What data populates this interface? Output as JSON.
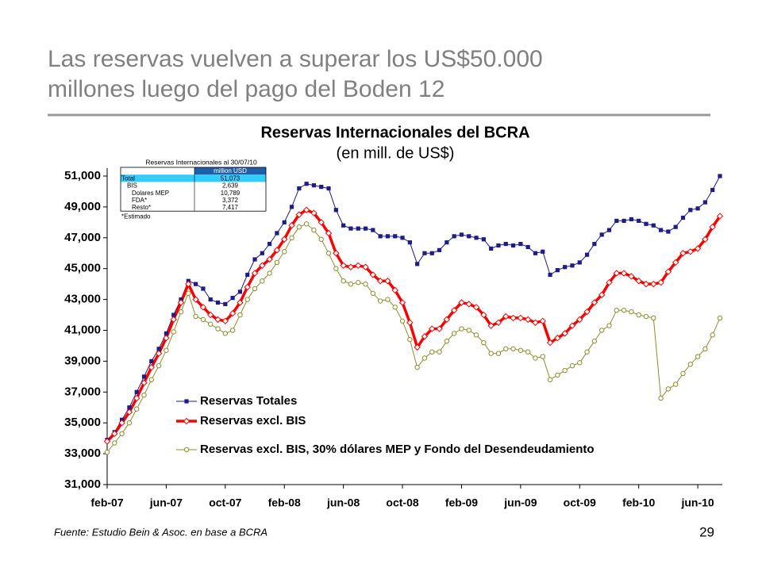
{
  "slide": {
    "title_lines": [
      "Las reservas vuelven a superar los US$50.000",
      "millones luego del pago del Boden 12"
    ],
    "source": "Fuente: Estudio Bein & Asoc. en base a BCRA",
    "page_number": "29"
  },
  "inset_table": {
    "title": "Reservas Internacionales al 30/07/10",
    "header": "million USD",
    "rows": [
      [
        "Total",
        "51,073"
      ],
      [
        "BIS",
        "2,639"
      ],
      [
        "Dolares MEP",
        "10,789"
      ],
      [
        "FDA*",
        "3,372"
      ],
      [
        "Resto*",
        "7,417"
      ]
    ],
    "note": "*Estimado"
  },
  "chart_data": {
    "type": "line",
    "title": "Reservas Internacionales del BCRA",
    "subtitle": "(en mill. de US$)",
    "categories": [
      "feb-07",
      null,
      null,
      null,
      null,
      null,
      null,
      null,
      "jun-07",
      null,
      null,
      null,
      null,
      null,
      null,
      null,
      "oct-07",
      null,
      null,
      null,
      null,
      null,
      null,
      null,
      "feb-08",
      null,
      null,
      null,
      null,
      null,
      null,
      null,
      "jun-08",
      null,
      null,
      null,
      null,
      null,
      null,
      null,
      "oct-08",
      null,
      null,
      null,
      null,
      null,
      null,
      null,
      "feb-09",
      null,
      null,
      null,
      null,
      null,
      null,
      null,
      "jun-09",
      null,
      null,
      null,
      null,
      null,
      null,
      null,
      "oct-09",
      null,
      null,
      null,
      null,
      null,
      null,
      null,
      "feb-10",
      null,
      null,
      null,
      null,
      null,
      null,
      null,
      "jun-10",
      null,
      null,
      null
    ],
    "ylim": [
      31000,
      51000
    ],
    "yticks": [
      {
        "value": 31000,
        "label": "31,000"
      },
      {
        "value": 33000,
        "label": "33,000"
      },
      {
        "value": 35000,
        "label": "35,000"
      },
      {
        "value": 37000,
        "label": "37,000"
      },
      {
        "value": 39000,
        "label": "39,000"
      },
      {
        "value": 41000,
        "label": "41,000"
      },
      {
        "value": 43000,
        "label": "43,000"
      },
      {
        "value": 45000,
        "label": "45,000"
      },
      {
        "value": 47000,
        "label": "47,000"
      },
      {
        "value": 49000,
        "label": "49,000"
      },
      {
        "value": 51000,
        "label": "51,000"
      }
    ],
    "grid": false,
    "series": [
      {
        "name": "Reservas Totales",
        "color": "#1c1c8a",
        "marker": "square",
        "values": [
          33900,
          34400,
          35200,
          36000,
          37000,
          38000,
          39000,
          39800,
          40800,
          42000,
          43000,
          44200,
          44000,
          43700,
          43000,
          42800,
          42700,
          43100,
          43500,
          44600,
          45600,
          46000,
          46600,
          47300,
          48000,
          49000,
          50200,
          50500,
          50400,
          50300,
          50200,
          48800,
          47800,
          47600,
          47600,
          47600,
          47500,
          47100,
          47100,
          47100,
          47000,
          46700,
          45300,
          46000,
          46000,
          46200,
          46700,
          47100,
          47200,
          47100,
          47000,
          46900,
          46300,
          46500,
          46600,
          46500,
          46600,
          46400,
          46000,
          46100,
          44600,
          44900,
          45100,
          45200,
          45400,
          45900,
          46600,
          47200,
          47500,
          48100,
          48100,
          48200,
          48100,
          47900,
          47800,
          47500,
          47400,
          47700,
          48300,
          48800,
          48900,
          49300,
          50100,
          51000
        ]
      },
      {
        "name": "Reservas excl. BIS",
        "color": "#ff0000",
        "marker": "diamond",
        "values": [
          33800,
          34300,
          35000,
          35700,
          36600,
          37600,
          38600,
          39500,
          40500,
          41700,
          42800,
          44000,
          43000,
          42500,
          42000,
          41700,
          41600,
          42100,
          42800,
          43800,
          44700,
          45200,
          45600,
          46200,
          46900,
          47800,
          48500,
          48800,
          48600,
          48000,
          47300,
          46000,
          45200,
          45100,
          45200,
          45100,
          44600,
          44200,
          44200,
          43600,
          42800,
          41500,
          39900,
          40600,
          41100,
          41100,
          41700,
          42300,
          42800,
          42700,
          42500,
          42000,
          41300,
          41500,
          41900,
          41800,
          41800,
          41700,
          41500,
          41600,
          40200,
          40500,
          40800,
          41300,
          41700,
          42200,
          42800,
          43300,
          44100,
          44700,
          44700,
          44500,
          44200,
          44000,
          44000,
          44100,
          44800,
          45400,
          46000,
          46100,
          46300,
          46900,
          47700,
          48400
        ]
      },
      {
        "name": "Reservas excl. BIS, 30% dólares MEP y Fondo del Desendeudamiento",
        "color": "#8f8f2a",
        "marker": "circle",
        "values": [
          33100,
          33700,
          34300,
          35000,
          35900,
          36800,
          37800,
          38700,
          39700,
          40900,
          42200,
          43400,
          41900,
          41700,
          41400,
          41100,
          40800,
          41000,
          42000,
          43000,
          43700,
          44200,
          44700,
          45400,
          46100,
          47000,
          47700,
          47900,
          47500,
          46900,
          46000,
          45000,
          44200,
          44000,
          44100,
          44000,
          43400,
          42900,
          43000,
          42500,
          41600,
          40400,
          38600,
          39200,
          39600,
          39600,
          40300,
          40800,
          41100,
          41000,
          40700,
          40200,
          39500,
          39500,
          39800,
          39800,
          39700,
          39600,
          39200,
          39300,
          37800,
          38100,
          38400,
          38700,
          38900,
          39600,
          40300,
          41000,
          41300,
          42300,
          42300,
          42200,
          42000,
          41900,
          41800,
          36600,
          37200,
          37500,
          38200,
          38800,
          39300,
          39800,
          40700,
          41800
        ]
      }
    ]
  }
}
